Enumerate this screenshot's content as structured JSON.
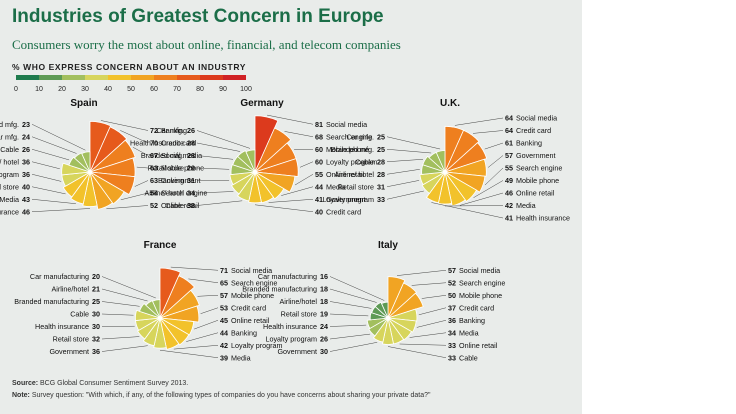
{
  "title": "Industries of Greatest Concern in Europe",
  "subtitle": "Consumers worry the most about online, financial, and telecom companies",
  "scale": {
    "label": "% WHO EXPRESS CONCERN ABOUT AN INDUSTRY",
    "ticks": [
      "0",
      "10",
      "20",
      "30",
      "40",
      "50",
      "60",
      "70",
      "80",
      "90",
      "100"
    ],
    "colors": [
      "#1e7b4d",
      "#5d9a55",
      "#a2bf5e",
      "#d7d55c",
      "#f2c22b",
      "#f1a423",
      "#ee7f1f",
      "#e65a1c",
      "#dc3a1d",
      "#d02225"
    ]
  },
  "source": {
    "source_label": "Source:",
    "source_text": "BCG Global Consumer Sentiment Survey 2013.",
    "note_label": "Note:",
    "note_text": "Survey question: \"With which, if any, of the following types of companies do you have concerns about sharing your private data?\""
  },
  "chart_data": [
    {
      "type": "polar-bar",
      "title": "Spain",
      "slices": [
        {
          "label": "Banking",
          "value": 72
        },
        {
          "label": "Credit card",
          "value": 70
        },
        {
          "label": "Social media",
          "value": 67
        },
        {
          "label": "Mobile phone",
          "value": 63
        },
        {
          "label": "Government",
          "value": 63
        },
        {
          "label": "Search engine",
          "value": 54
        },
        {
          "label": "Online retail",
          "value": 52
        },
        {
          "label": "Health insurance",
          "value": 46
        },
        {
          "label": "Media",
          "value": 43
        },
        {
          "label": "Retail store",
          "value": 40
        },
        {
          "label": "Loyalty program",
          "value": 36
        },
        {
          "label": "Airline/ hotel",
          "value": 36
        },
        {
          "label": "Cable",
          "value": 26
        },
        {
          "label": "Car mfg.",
          "value": 24
        },
        {
          "label": "Branded mfg.",
          "value": 23
        }
      ]
    },
    {
      "type": "polar-bar",
      "title": "Germany",
      "slices": [
        {
          "label": "Social media",
          "value": 81
        },
        {
          "label": "Search engine",
          "value": 68
        },
        {
          "label": "Mobile phone",
          "value": 60
        },
        {
          "label": "Loyalty program",
          "value": 60
        },
        {
          "label": "Online retail",
          "value": 55
        },
        {
          "label": "Media",
          "value": 44
        },
        {
          "label": "Government",
          "value": 41
        },
        {
          "label": "Credit card",
          "value": 40
        },
        {
          "label": "Cable",
          "value": 38
        },
        {
          "label": "Airline/ hotel",
          "value": 34
        },
        {
          "label": "Banking",
          "value": 31
        },
        {
          "label": "Retail store",
          "value": 29
        },
        {
          "label": "Branded mfg.",
          "value": 28
        },
        {
          "label": "Health insurance",
          "value": 28
        },
        {
          "label": "Car mfg.",
          "value": 26
        }
      ]
    },
    {
      "type": "polar-bar",
      "title": "U.K.",
      "slices": [
        {
          "label": "Social media",
          "value": 64
        },
        {
          "label": "Credit card",
          "value": 64
        },
        {
          "label": "Banking",
          "value": 61
        },
        {
          "label": "Government",
          "value": 57
        },
        {
          "label": "Search engine",
          "value": 55
        },
        {
          "label": "Mobile phone",
          "value": 49
        },
        {
          "label": "Online retail",
          "value": 46
        },
        {
          "label": "Media",
          "value": 42
        },
        {
          "label": "Health insurance",
          "value": 41
        },
        {
          "label": "Loyalty program",
          "value": 33
        },
        {
          "label": "Retail store",
          "value": 31
        },
        {
          "label": "Airline/ hotel",
          "value": 28
        },
        {
          "label": "Cable",
          "value": 28
        },
        {
          "label": "Branded mfg.",
          "value": 25
        },
        {
          "label": "Car mfg.",
          "value": 25
        }
      ]
    },
    {
      "type": "polar-bar",
      "title": "France",
      "slices": [
        {
          "label": "Social media",
          "value": 71
        },
        {
          "label": "Search engine",
          "value": 65
        },
        {
          "label": "Mobile phone",
          "value": 57
        },
        {
          "label": "Credit card",
          "value": 53
        },
        {
          "label": "Online retail",
          "value": 45
        },
        {
          "label": "Banking",
          "value": 44
        },
        {
          "label": "Loyalty program",
          "value": 42
        },
        {
          "label": "Media",
          "value": 39
        },
        {
          "label": "Government",
          "value": 36
        },
        {
          "label": "Retail store",
          "value": 32
        },
        {
          "label": "Health insurance",
          "value": 30
        },
        {
          "label": "Cable",
          "value": 30
        },
        {
          "label": "Branded manufacturing",
          "value": 25
        },
        {
          "label": "Airline/hotel",
          "value": 21
        },
        {
          "label": "Car manufacturing",
          "value": 20
        }
      ]
    },
    {
      "type": "polar-bar",
      "title": "Italy",
      "slices": [
        {
          "label": "Social media",
          "value": 57
        },
        {
          "label": "Search engine",
          "value": 52
        },
        {
          "label": "Mobile phone",
          "value": 50
        },
        {
          "label": "Credit card",
          "value": 37
        },
        {
          "label": "Banking",
          "value": 36
        },
        {
          "label": "Media",
          "value": 34
        },
        {
          "label": "Online retail",
          "value": 33
        },
        {
          "label": "Cable",
          "value": 33
        },
        {
          "label": "Government",
          "value": 30
        },
        {
          "label": "Loyalty program",
          "value": 26
        },
        {
          "label": "Health insurance",
          "value": 24
        },
        {
          "label": "Retail store",
          "value": 19
        },
        {
          "label": "Airline/hotel",
          "value": 18
        },
        {
          "label": "Branded manufacturing",
          "value": 18
        },
        {
          "label": "Car manufacturing",
          "value": 16
        }
      ]
    }
  ]
}
